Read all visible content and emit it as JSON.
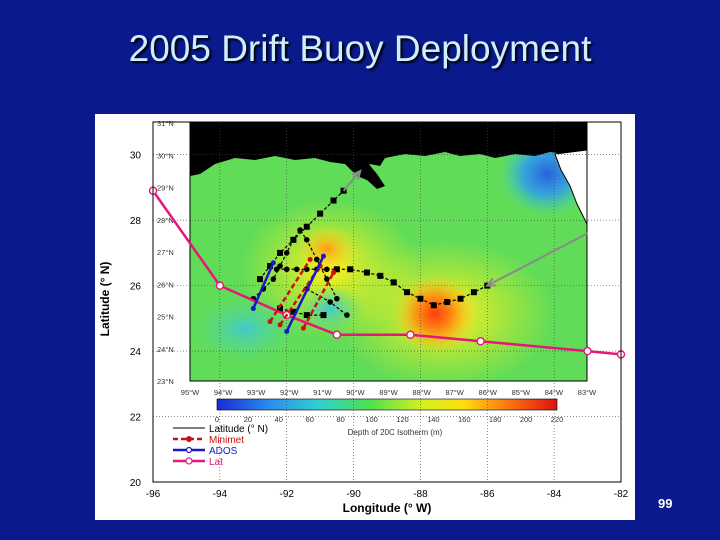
{
  "slide": {
    "title": "2005 Drift Buoy Deployment",
    "page_number": "99"
  },
  "colors": {
    "background": "#0a1a8c",
    "title": "#cfeeff",
    "lat": "#e8157a",
    "minimet": "#cc1010",
    "ados": "#1818c8",
    "hurricane_track": "#000000",
    "arrow": "#8a8a8a"
  },
  "chart_data": {
    "type": "line",
    "title": "",
    "xlabel": "Longitude (° W)",
    "ylabel": "Latitude (° N)",
    "xlim": [
      -96,
      -82
    ],
    "ylim": [
      20,
      31
    ],
    "x_ticks": [
      "-96",
      "-94",
      "-92",
      "-90",
      "-88",
      "-86",
      "-84",
      "-82"
    ],
    "y_ticks": [
      "20",
      "22",
      "24",
      "26",
      "28",
      "30"
    ],
    "grid": true,
    "legend_position": "bottom-left",
    "legend": [
      "Latitude (° N)",
      "Minimet",
      "ADOS",
      "Lat"
    ],
    "series": [
      {
        "name": "Lat",
        "marker": "circle-open",
        "x": [
          -96,
          -94,
          -92,
          -90.5,
          -88.3,
          -86.2,
          -83,
          -82
        ],
        "y": [
          28.9,
          26,
          25.1,
          24.5,
          24.5,
          24.3,
          24.0,
          23.9
        ]
      },
      {
        "name": "Minimet",
        "marker": "circle",
        "lines": [
          {
            "x": [
              -92.5,
              -91.3
            ],
            "y": [
              24.9,
              26.8
            ]
          },
          {
            "x": [
              -92.2,
              -91.0
            ],
            "y": [
              24.8,
              26.6
            ]
          },
          {
            "x": [
              -91.5,
              -90.6
            ],
            "y": [
              24.7,
              26.4
            ]
          }
        ]
      },
      {
        "name": "ADOS",
        "marker": "circle",
        "lines": [
          {
            "x": [
              -93.0,
              -92.4
            ],
            "y": [
              25.3,
              26.7
            ]
          },
          {
            "x": [
              -92.0,
              -90.9
            ],
            "y": [
              24.6,
              26.9
            ]
          }
        ]
      }
    ],
    "hurricane_tracks": [
      {
        "marker": "square",
        "x": [
          -92.8,
          -92.5,
          -92.2,
          -91.8,
          -91.4,
          -91.0,
          -90.6,
          -90.3
        ],
        "y": [
          26.2,
          26.6,
          27.0,
          27.4,
          27.8,
          28.2,
          28.6,
          28.9
        ]
      },
      {
        "marker": "circle",
        "x": [
          -93.0,
          -92.7,
          -92.4,
          -92.2,
          -92.0,
          -91.8,
          -91.6,
          -91.4,
          -91.1,
          -90.8,
          -90.5
        ],
        "y": [
          25.6,
          25.9,
          26.2,
          26.6,
          27.0,
          27.4,
          27.7,
          27.4,
          26.8,
          26.2,
          25.6
        ]
      },
      {
        "marker": "circle",
        "x": [
          -92.3,
          -92.0,
          -91.7,
          -91.4,
          -91.1,
          -90.8,
          -90.5
        ],
        "y": [
          26.5,
          26.5,
          26.5,
          26.5,
          26.5,
          26.5,
          26.5
        ]
      },
      {
        "marker": "square",
        "x": [
          -90.5,
          -90.1,
          -89.6,
          -89.2,
          -88.8,
          -88.4,
          -88.0,
          -87.6,
          -87.2,
          -86.8,
          -86.4,
          -86.0
        ],
        "y": [
          26.5,
          26.5,
          26.4,
          26.3,
          26.1,
          25.8,
          25.6,
          25.4,
          25.5,
          25.6,
          25.8,
          26.0
        ]
      },
      {
        "marker": "square",
        "x": [
          -92.2,
          -91.8,
          -91.4,
          -90.9
        ],
        "y": [
          25.3,
          25.2,
          25.1,
          25.1
        ]
      },
      {
        "marker": "circle",
        "x": [
          -91.4,
          -90.7,
          -90.2
        ],
        "y": [
          25.9,
          25.5,
          25.1
        ]
      }
    ],
    "arrows": [
      {
        "from": [
          -90.3,
          28.9
        ],
        "to": [
          -89.8,
          29.5
        ]
      },
      {
        "from": [
          -83.0,
          27.6
        ],
        "to": [
          -86.0,
          26.0
        ]
      }
    ],
    "map_inset": {
      "lat_labels": [
        "31°N",
        "30°N",
        "29°N",
        "28°N",
        "27°N",
        "26°N",
        "25°N",
        "24°N",
        "23°N"
      ],
      "lon_labels": [
        "95°W",
        "94°W",
        "93°W",
        "92°W",
        "91°W",
        "90°W",
        "89°W",
        "88°W",
        "87°W",
        "86°W",
        "85°W",
        "84°W",
        "83°W"
      ],
      "colorbar_ticks": [
        "0",
        "20",
        "40",
        "60",
        "80",
        "100",
        "120",
        "140",
        "160",
        "180",
        "200",
        "220"
      ],
      "colorbar_label": "Depth of 20C Isotherm (m)"
    }
  }
}
